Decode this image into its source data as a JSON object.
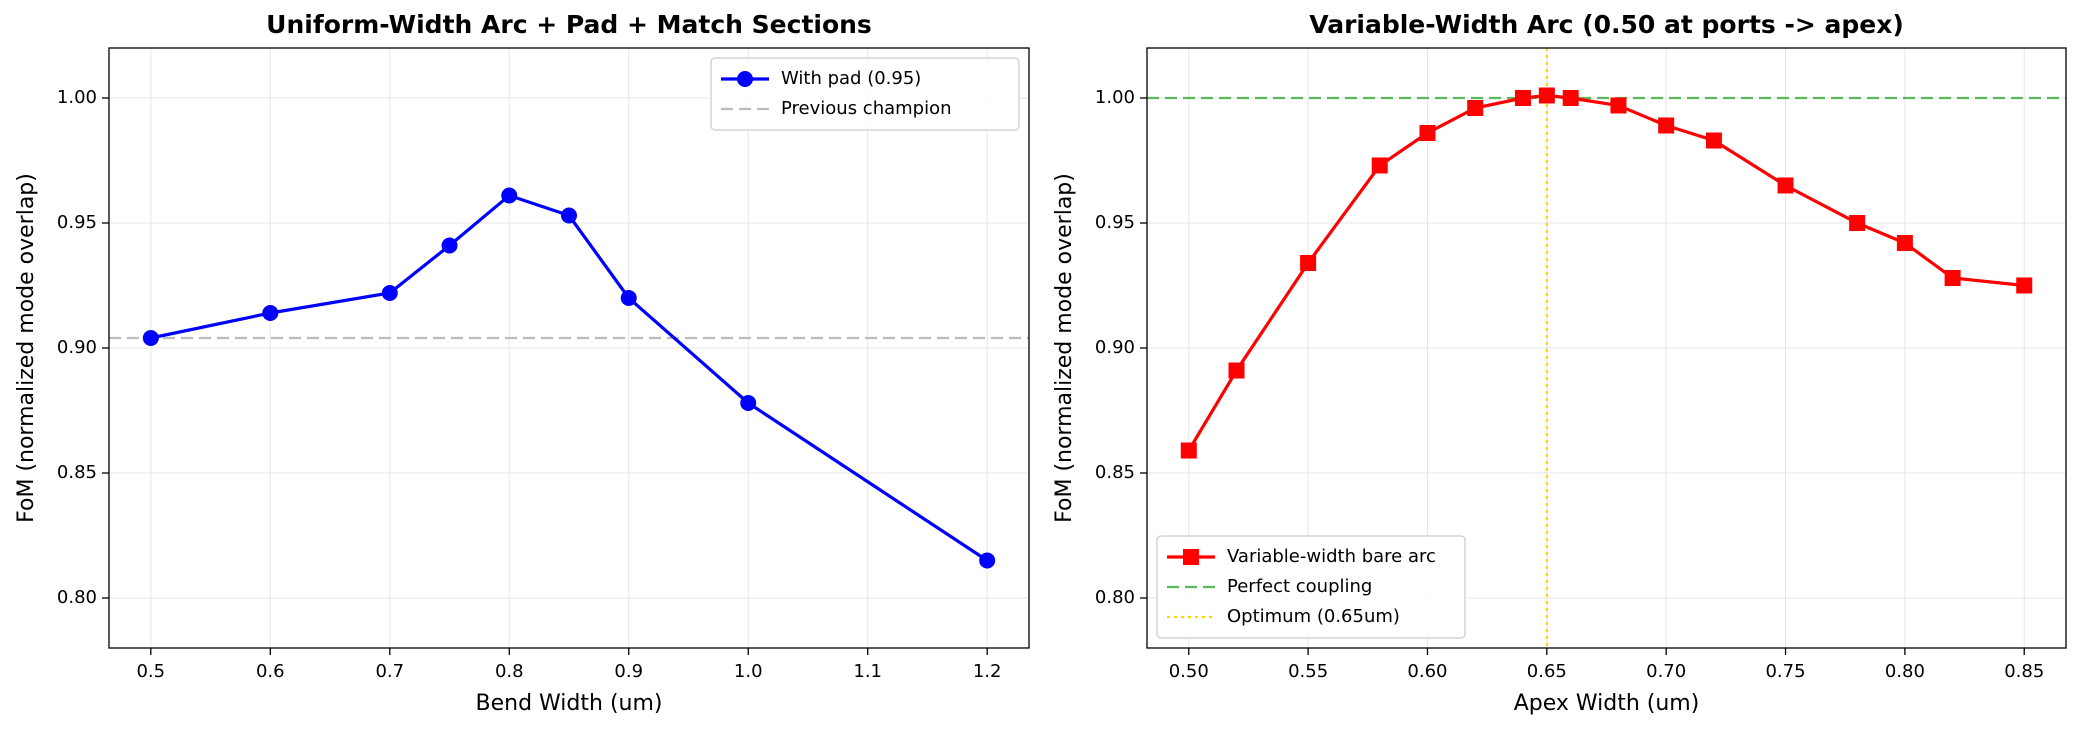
{
  "chart_data": [
    {
      "type": "line",
      "title": "Uniform-Width Arc + Pad + Match Sections",
      "xlabel": "Bend Width (um)",
      "ylabel": "FoM (normalized mode overlap)",
      "x": [
        0.5,
        0.6,
        0.7,
        0.75,
        0.8,
        0.85,
        0.9,
        1.0,
        1.2
      ],
      "series": [
        {
          "name": "With pad (0.95)",
          "color": "#0000ff",
          "marker": "circle",
          "values": [
            0.904,
            0.914,
            0.922,
            0.941,
            0.961,
            0.953,
            0.92,
            0.878,
            0.815
          ]
        }
      ],
      "reference_lines": [
        {
          "name": "Previous champion",
          "orientation": "horizontal",
          "value": 0.904,
          "color": "#bbbbbb",
          "style": "dashed"
        }
      ],
      "xlim": [
        0.465,
        1.235
      ],
      "ylim": [
        0.78,
        1.02
      ],
      "xticks": [
        0.5,
        0.6,
        0.7,
        0.8,
        0.9,
        {
          "value": 1,
          "label": "1.0"
        },
        1.1,
        1.2
      ],
      "yticks": [
        {
          "value": 0.8,
          "label": "0.80"
        },
        0.85,
        {
          "value": 0.9,
          "label": "0.90"
        },
        0.95,
        {
          "value": 1,
          "label": "1.00"
        }
      ],
      "grid": true,
      "legend": "upper right"
    },
    {
      "type": "line",
      "title": "Variable-Width Arc (0.50 at ports -> apex)",
      "xlabel": "Apex Width (um)",
      "ylabel": "FoM (normalized mode overlap)",
      "x": [
        0.5,
        0.52,
        0.55,
        0.58,
        0.6,
        0.62,
        0.64,
        0.65,
        0.66,
        0.68,
        0.7,
        0.72,
        0.75,
        0.78,
        0.8,
        0.82,
        0.85
      ],
      "series": [
        {
          "name": "Variable-width bare arc",
          "color": "#ff0000",
          "marker": "square",
          "values": [
            0.859,
            0.891,
            0.934,
            0.973,
            0.986,
            0.996,
            1.0,
            1.001,
            1.0,
            0.997,
            0.989,
            0.983,
            0.965,
            0.95,
            0.942,
            0.928,
            0.925
          ]
        }
      ],
      "reference_lines": [
        {
          "name": "Perfect coupling",
          "orientation": "horizontal",
          "value": 1,
          "color": "#5cb85c",
          "style": "dashed"
        },
        {
          "name": "Optimum (0.65um)",
          "orientation": "vertical",
          "value": 0.65,
          "color": "#ffd700",
          "style": "dotted"
        }
      ],
      "xlim": [
        0.4825,
        0.8675
      ],
      "ylim": [
        0.78,
        1.02
      ],
      "xticks": [
        {
          "value": 0.5,
          "label": "0.50"
        },
        0.55,
        {
          "value": 0.6,
          "label": "0.60"
        },
        0.65,
        {
          "value": 0.7,
          "label": "0.70"
        },
        0.75,
        {
          "value": 0.8,
          "label": "0.80"
        },
        0.85
      ],
      "yticks": [
        {
          "value": 0.8,
          "label": "0.80"
        },
        0.85,
        {
          "value": 0.9,
          "label": "0.90"
        },
        0.95,
        {
          "value": 1,
          "label": "1.00"
        }
      ],
      "grid": true,
      "legend": "lower left"
    }
  ]
}
